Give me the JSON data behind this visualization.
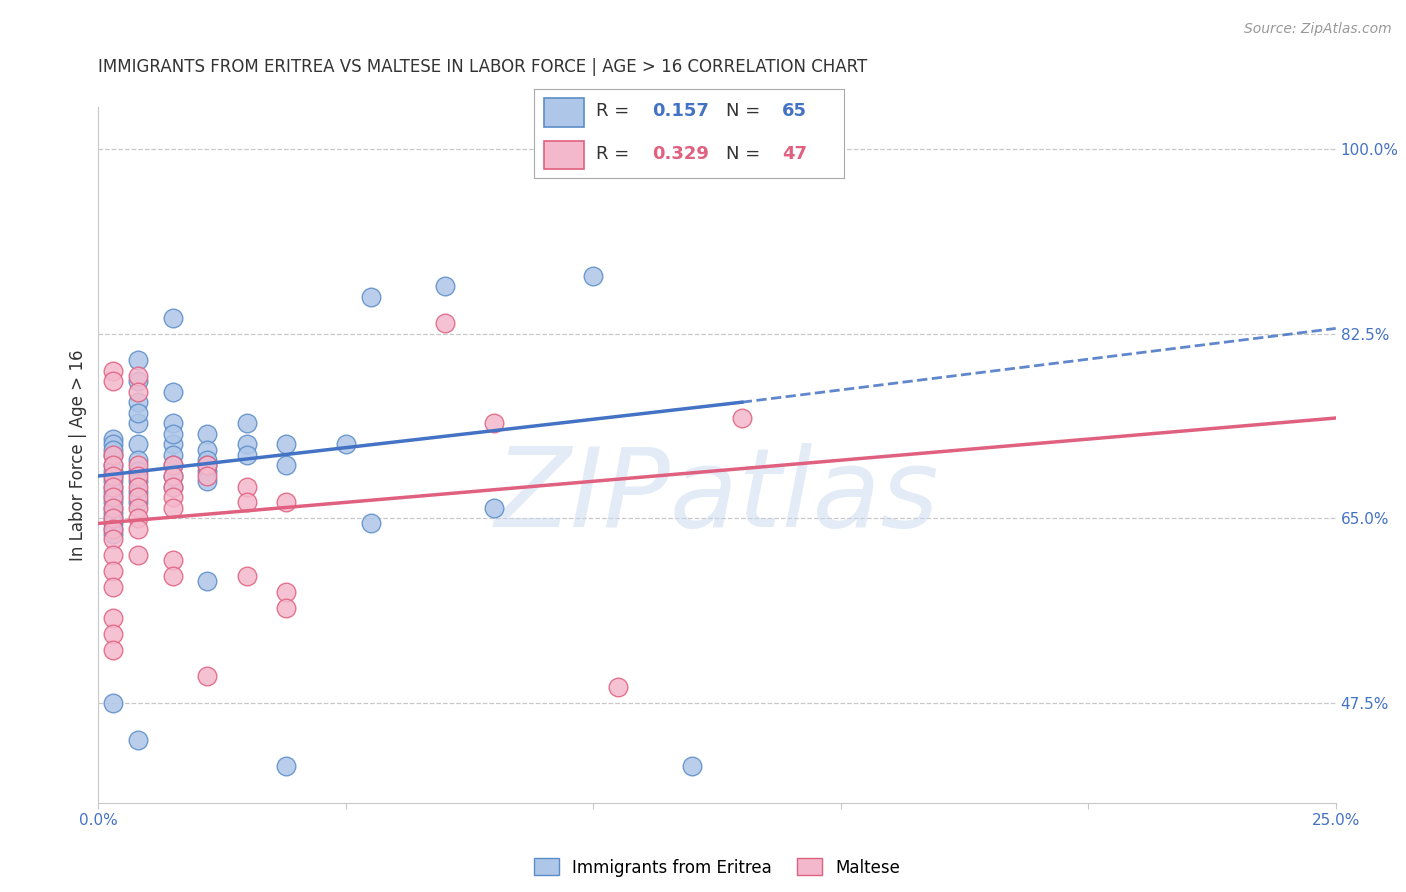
{
  "title": "IMMIGRANTS FROM ERITREA VS MALTESE IN LABOR FORCE | AGE > 16 CORRELATION CHART",
  "source": "Source: ZipAtlas.com",
  "ylabel": "In Labor Force | Age > 16",
  "xlim": [
    0.0,
    0.25
  ],
  "ylim": [
    0.38,
    1.04
  ],
  "xticks": [
    0.0,
    0.05,
    0.1,
    0.15,
    0.2,
    0.25
  ],
  "ytick_positions": [
    0.475,
    0.65,
    0.825,
    1.0
  ],
  "ytick_labels": [
    "47.5%",
    "65.0%",
    "82.5%",
    "100.0%"
  ],
  "watermark": "ZIPatlas",
  "blue_color": "#aec6e8",
  "pink_color": "#f4b8cc",
  "blue_edge_color": "#5b8dc8",
  "pink_edge_color": "#e06080",
  "blue_line_color": "#4472c4",
  "pink_line_color": "#e06080",
  "grid_color": "#c8c8c8",
  "blue_scatter": [
    [
      0.003,
      0.71
    ],
    [
      0.003,
      0.7
    ],
    [
      0.003,
      0.725
    ],
    [
      0.003,
      0.69
    ],
    [
      0.003,
      0.68
    ],
    [
      0.003,
      0.67
    ],
    [
      0.003,
      0.66
    ],
    [
      0.003,
      0.65
    ],
    [
      0.003,
      0.64
    ],
    [
      0.003,
      0.72
    ],
    [
      0.003,
      0.695
    ],
    [
      0.003,
      0.685
    ],
    [
      0.003,
      0.675
    ],
    [
      0.003,
      0.665
    ],
    [
      0.003,
      0.655
    ],
    [
      0.003,
      0.645
    ],
    [
      0.003,
      0.635
    ],
    [
      0.003,
      0.715
    ],
    [
      0.008,
      0.8
    ],
    [
      0.008,
      0.78
    ],
    [
      0.008,
      0.76
    ],
    [
      0.008,
      0.74
    ],
    [
      0.008,
      0.72
    ],
    [
      0.008,
      0.705
    ],
    [
      0.008,
      0.695
    ],
    [
      0.008,
      0.685
    ],
    [
      0.008,
      0.675
    ],
    [
      0.008,
      0.665
    ],
    [
      0.008,
      0.75
    ],
    [
      0.015,
      0.84
    ],
    [
      0.015,
      0.77
    ],
    [
      0.015,
      0.74
    ],
    [
      0.015,
      0.72
    ],
    [
      0.015,
      0.71
    ],
    [
      0.015,
      0.7
    ],
    [
      0.015,
      0.69
    ],
    [
      0.015,
      0.68
    ],
    [
      0.015,
      0.73
    ],
    [
      0.022,
      0.73
    ],
    [
      0.022,
      0.715
    ],
    [
      0.022,
      0.705
    ],
    [
      0.022,
      0.695
    ],
    [
      0.022,
      0.685
    ],
    [
      0.022,
      0.7
    ],
    [
      0.03,
      0.74
    ],
    [
      0.03,
      0.72
    ],
    [
      0.03,
      0.71
    ],
    [
      0.038,
      0.72
    ],
    [
      0.038,
      0.7
    ],
    [
      0.05,
      0.72
    ],
    [
      0.055,
      0.86
    ],
    [
      0.07,
      0.87
    ],
    [
      0.1,
      0.88
    ],
    [
      0.003,
      0.475
    ],
    [
      0.008,
      0.44
    ],
    [
      0.022,
      0.59
    ],
    [
      0.038,
      0.415
    ],
    [
      0.055,
      0.645
    ],
    [
      0.08,
      0.66
    ],
    [
      0.12,
      0.415
    ]
  ],
  "pink_scatter": [
    [
      0.003,
      0.79
    ],
    [
      0.003,
      0.78
    ],
    [
      0.003,
      0.71
    ],
    [
      0.003,
      0.7
    ],
    [
      0.003,
      0.69
    ],
    [
      0.003,
      0.68
    ],
    [
      0.003,
      0.67
    ],
    [
      0.003,
      0.66
    ],
    [
      0.003,
      0.65
    ],
    [
      0.003,
      0.64
    ],
    [
      0.003,
      0.63
    ],
    [
      0.003,
      0.615
    ],
    [
      0.003,
      0.6
    ],
    [
      0.003,
      0.585
    ],
    [
      0.003,
      0.555
    ],
    [
      0.003,
      0.54
    ],
    [
      0.003,
      0.525
    ],
    [
      0.008,
      0.785
    ],
    [
      0.008,
      0.77
    ],
    [
      0.008,
      0.7
    ],
    [
      0.008,
      0.69
    ],
    [
      0.008,
      0.68
    ],
    [
      0.008,
      0.67
    ],
    [
      0.008,
      0.66
    ],
    [
      0.008,
      0.65
    ],
    [
      0.008,
      0.64
    ],
    [
      0.008,
      0.615
    ],
    [
      0.015,
      0.7
    ],
    [
      0.015,
      0.69
    ],
    [
      0.015,
      0.68
    ],
    [
      0.015,
      0.67
    ],
    [
      0.015,
      0.66
    ],
    [
      0.015,
      0.61
    ],
    [
      0.015,
      0.595
    ],
    [
      0.022,
      0.7
    ],
    [
      0.022,
      0.69
    ],
    [
      0.022,
      0.5
    ],
    [
      0.03,
      0.68
    ],
    [
      0.03,
      0.665
    ],
    [
      0.03,
      0.595
    ],
    [
      0.038,
      0.665
    ],
    [
      0.038,
      0.58
    ],
    [
      0.038,
      0.565
    ],
    [
      0.07,
      0.835
    ],
    [
      0.08,
      0.74
    ],
    [
      0.105,
      0.49
    ],
    [
      0.13,
      0.745
    ]
  ],
  "blue_line": {
    "x0": 0.0,
    "x1": 0.13,
    "y0": 0.69,
    "y1": 0.76
  },
  "blue_line_dash": {
    "x0": 0.13,
    "x1": 0.25,
    "y0": 0.76,
    "y1": 0.83
  },
  "pink_line": {
    "x0": 0.0,
    "x1": 0.25,
    "y0": 0.645,
    "y1": 0.745
  },
  "title_fontsize": 12,
  "source_fontsize": 10,
  "axis_label_fontsize": 12,
  "tick_fontsize": 11,
  "legend_fontsize": 13
}
